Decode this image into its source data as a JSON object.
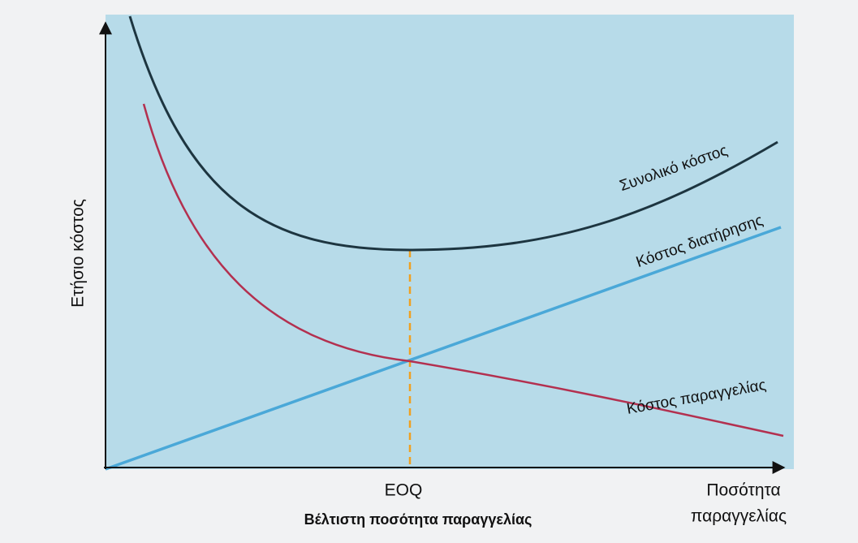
{
  "y_axis_label": "Ετήσιο κόστος",
  "x_axis_label": {
    "line1": "Ποσότητα",
    "line2": "παραγγελίας"
  },
  "eoq_label": "EOQ",
  "eoq_caption": "Βέλτιστη ποσότητα παραγγελίας",
  "curves": {
    "total": "Συνολικό κόστος",
    "holding": "Κόστος διατήρησης",
    "ordering": "Κόστος παραγγελίας"
  }
}
